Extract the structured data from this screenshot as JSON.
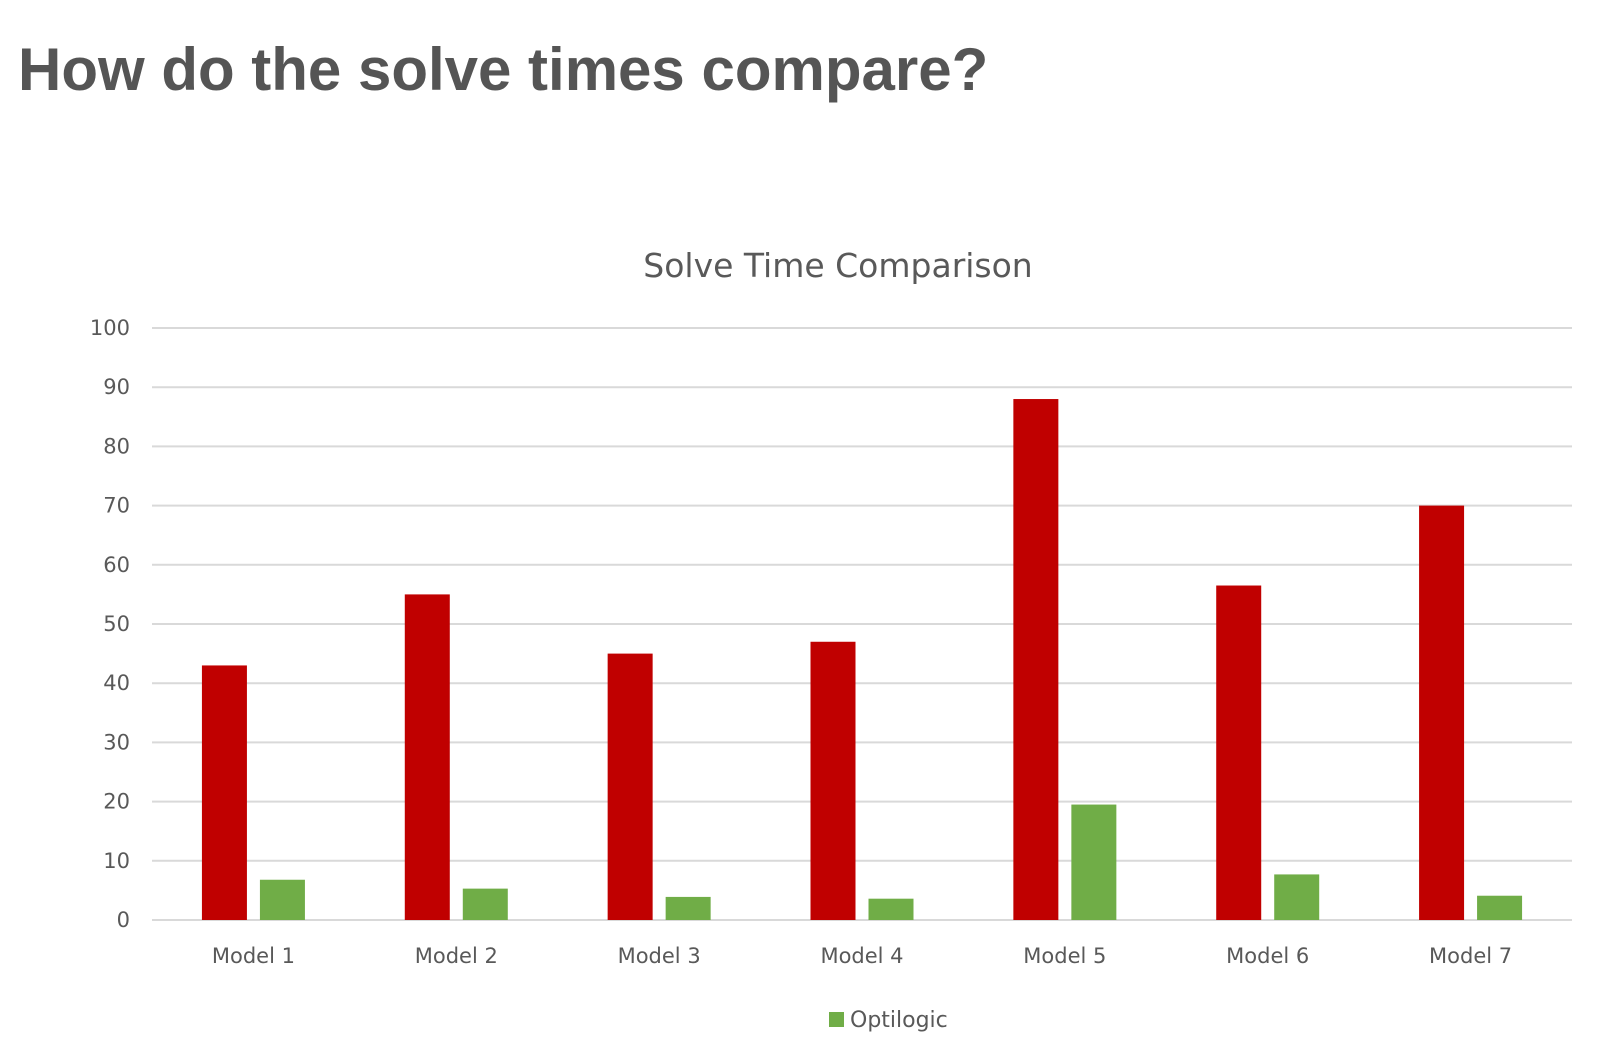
{
  "slide": {
    "title": "How do the solve times compare?"
  },
  "chart_data": {
    "type": "bar",
    "title": "Solve Time Comparison",
    "xlabel": "",
    "ylabel": "",
    "categories": [
      "Model 1",
      "Model 2",
      "Model 3",
      "Model 4",
      "Model 5",
      "Model 6",
      "Model 7"
    ],
    "series": [
      {
        "color": "#c00000",
        "values": [
          43,
          55,
          45,
          47,
          88,
          56.5,
          70
        ]
      },
      {
        "name": "Optilogic",
        "color": "#70ad47",
        "values": [
          6.8,
          5.3,
          3.9,
          3.6,
          19.5,
          7.7,
          4.1
        ]
      }
    ],
    "ylim": [
      0,
      100
    ],
    "yticks": [
      0,
      10,
      20,
      30,
      40,
      50,
      60,
      70,
      80,
      90,
      100
    ],
    "grid": true,
    "legend_position": "bottom",
    "colors": {
      "gridline": "#d9d9d9",
      "axis": "#d9d9d9",
      "text": "#595959"
    }
  }
}
